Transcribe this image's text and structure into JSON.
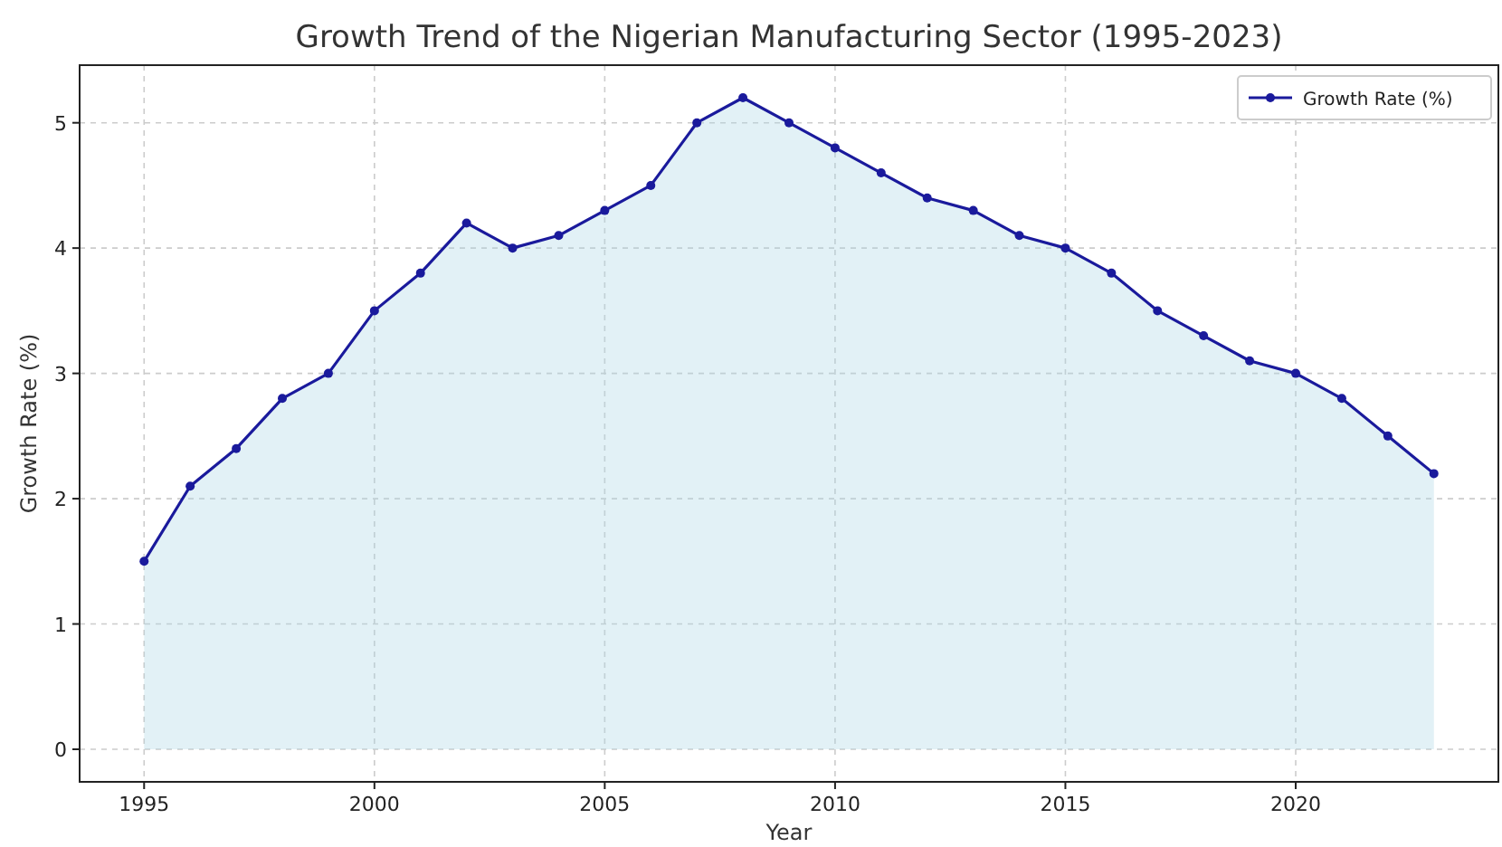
{
  "chart_data": {
    "type": "area",
    "title": "Growth Trend of the Nigerian Manufacturing Sector (1995-2023)",
    "xlabel": "Year",
    "ylabel": "Growth Rate (%)",
    "x": [
      1995,
      1996,
      1997,
      1998,
      1999,
      2000,
      2001,
      2002,
      2003,
      2004,
      2005,
      2006,
      2007,
      2008,
      2009,
      2010,
      2011,
      2012,
      2013,
      2014,
      2015,
      2016,
      2017,
      2018,
      2019,
      2020,
      2021,
      2022,
      2023
    ],
    "series": [
      {
        "name": "Growth Rate (%)",
        "color": "#1a1a9c",
        "values": [
          1.5,
          2.1,
          2.4,
          2.8,
          3.0,
          3.5,
          3.8,
          4.2,
          4.0,
          4.1,
          4.3,
          4.5,
          5.0,
          5.2,
          5.0,
          4.8,
          4.6,
          4.4,
          4.3,
          4.1,
          4.0,
          3.8,
          3.5,
          3.3,
          3.1,
          3.0,
          2.8,
          2.5,
          2.2
        ]
      }
    ],
    "xlim": [
      1993.6,
      2024.4
    ],
    "xticks": [
      1995,
      2000,
      2005,
      2010,
      2015,
      2020
    ],
    "ylim": [
      -0.26,
      5.46
    ],
    "yticks": [
      0,
      1,
      2,
      3,
      4,
      5
    ],
    "grid": true,
    "legend": "top right",
    "marker": "circle",
    "line_style": "solid"
  }
}
